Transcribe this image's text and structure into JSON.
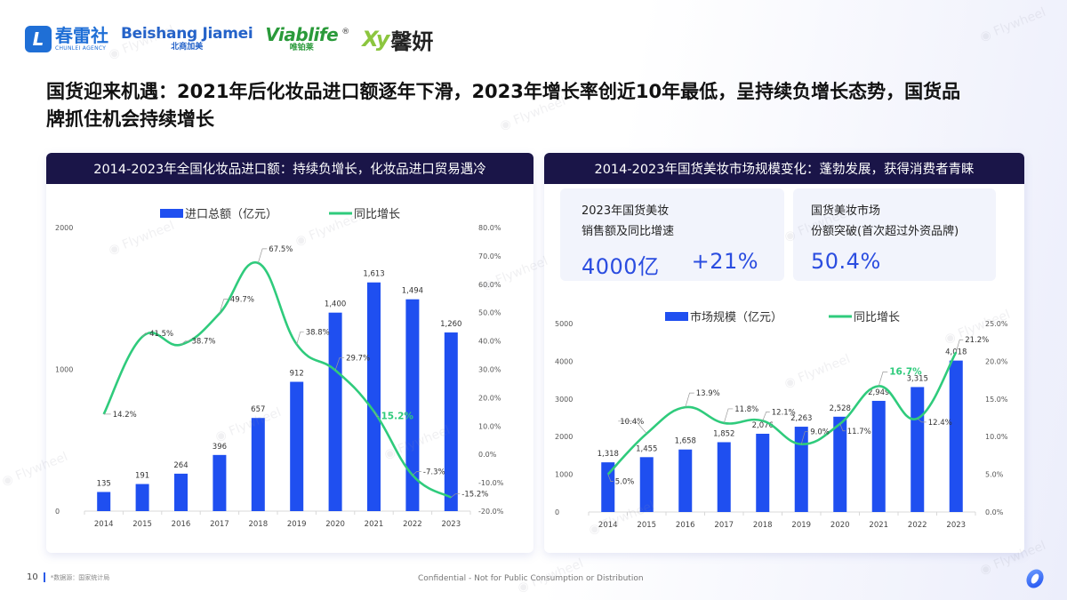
{
  "logos": [
    {
      "name": "春雷社",
      "sub": "CHUNLEI AGENCY",
      "mark": "L"
    },
    {
      "name": "Beishang Jiamei",
      "sub": "北商加美"
    },
    {
      "name": "Viablife",
      "sub": "唯铂莱",
      "mark": "®"
    },
    {
      "name": "Xy",
      "sub": "馨妍"
    }
  ],
  "headline": "国货迎来机遇：2021年后化妆品进口额逐年下滑，2023年增长率创近10年最低，呈持续负增长态势，国货品牌抓住机会持续增长",
  "left_panel": {
    "title": "2014-2023年全国化妆品进口额：持续负增长，化妆品进口贸易遇冷"
  },
  "right_panel": {
    "title": "2014-2023年国货美妆市场规模变化：蓬勃发展，获得消费者青睐",
    "kpis": [
      {
        "label_line1": "2023年国货美妆",
        "label_line2": "销售额及同比增速",
        "value1": "4000亿",
        "value2": "+21%"
      },
      {
        "label_line1": "国货美妆市场",
        "label_line2": "份额突破(首次超过外资品牌)",
        "value1": "50.4%"
      }
    ]
  },
  "chart_data": [
    {
      "type": "bar+line",
      "title": "2014-2023年全国化妆品进口额：持续负增长，化妆品进口贸易遇冷",
      "categories": [
        "2014",
        "2015",
        "2016",
        "2017",
        "2018",
        "2019",
        "2020",
        "2021",
        "2022",
        "2023"
      ],
      "series": [
        {
          "name": "进口总额（亿元）",
          "type": "bar",
          "axis": "left",
          "color": "#1f4ff0",
          "values": [
            135,
            191,
            264,
            396,
            657,
            912,
            1400,
            1613,
            1494,
            1260
          ],
          "labels": [
            "135",
            "191",
            "264",
            "396",
            "657",
            "912",
            "1,400",
            "1,613",
            "1,494",
            "1,260"
          ]
        },
        {
          "name": "同比增长",
          "type": "line",
          "axis": "right",
          "color": "#2fcb7c",
          "values": [
            14.2,
            41.5,
            38.7,
            49.7,
            67.5,
            38.8,
            29.7,
            15.2,
            -7.3,
            -15.2
          ],
          "labels": [
            "14.2%",
            "41.5%",
            "38.7%",
            "49.7%",
            "67.5%",
            "38.8%",
            "29.7%",
            "15.2%",
            "-7.3%",
            "-15.2%"
          ],
          "highlight_index": 7
        }
      ],
      "left_axis": {
        "ticks": [
          "0",
          "1000",
          "2000"
        ],
        "range": [
          0,
          2000
        ]
      },
      "right_axis": {
        "ticks": [
          "-20.0%",
          "-10.0%",
          "0.0%",
          "10.0%",
          "20.0%",
          "30.0%",
          "40.0%",
          "50.0%",
          "60.0%",
          "70.0%",
          "80.0%"
        ],
        "range": [
          -20,
          80
        ]
      },
      "legend_position": "top",
      "grid": false
    },
    {
      "type": "bar+line",
      "title": "2014-2023年国货美妆市场规模变化：蓬勃发展，获得消费者青睐",
      "categories": [
        "2014",
        "2015",
        "2016",
        "2017",
        "2018",
        "2019",
        "2020",
        "2021",
        "2022",
        "2023"
      ],
      "series": [
        {
          "name": "市场规模（亿元）",
          "type": "bar",
          "axis": "left",
          "color": "#1f4ff0",
          "values": [
            1318,
            1455,
            1658,
            1852,
            2076,
            2263,
            2528,
            2949,
            3315,
            4018
          ],
          "labels": [
            "1,318",
            "1,455",
            "1,658",
            "1,852",
            "2,076",
            "2,263",
            "2,528",
            "2,949",
            "3,315",
            "4,018"
          ]
        },
        {
          "name": "同比增长",
          "type": "line",
          "axis": "right",
          "color": "#2fcb7c",
          "values": [
            5.0,
            10.4,
            13.9,
            11.8,
            12.1,
            9.0,
            11.7,
            16.7,
            12.4,
            21.2
          ],
          "labels": [
            "5.0%",
            "10.4%",
            "13.9%",
            "11.8%",
            "12.1%",
            "9.0%",
            "11.7%",
            "16.7%",
            "12.4%",
            "21.2%"
          ],
          "highlight_index": 7
        }
      ],
      "left_axis": {
        "ticks": [
          "0",
          "1000",
          "2000",
          "3000",
          "4000",
          "5000"
        ],
        "range": [
          0,
          5000
        ]
      },
      "right_axis": {
        "ticks": [
          "0.0%",
          "5.0%",
          "10.0%",
          "15.0%",
          "20.0%",
          "25.0%"
        ],
        "range": [
          0,
          25
        ]
      },
      "legend_position": "top",
      "grid": false
    }
  ],
  "footer": {
    "page": "10",
    "source": "*数据源：国家统计局",
    "confidential": "Confidential - Not for Public Consumption or Distribution"
  },
  "watermark": "Flywheel",
  "colors": {
    "header_bg": "#1a1548",
    "bar": "#1f4ff0",
    "line": "#2fcb7c",
    "kpi_value": "#2b4de0"
  }
}
